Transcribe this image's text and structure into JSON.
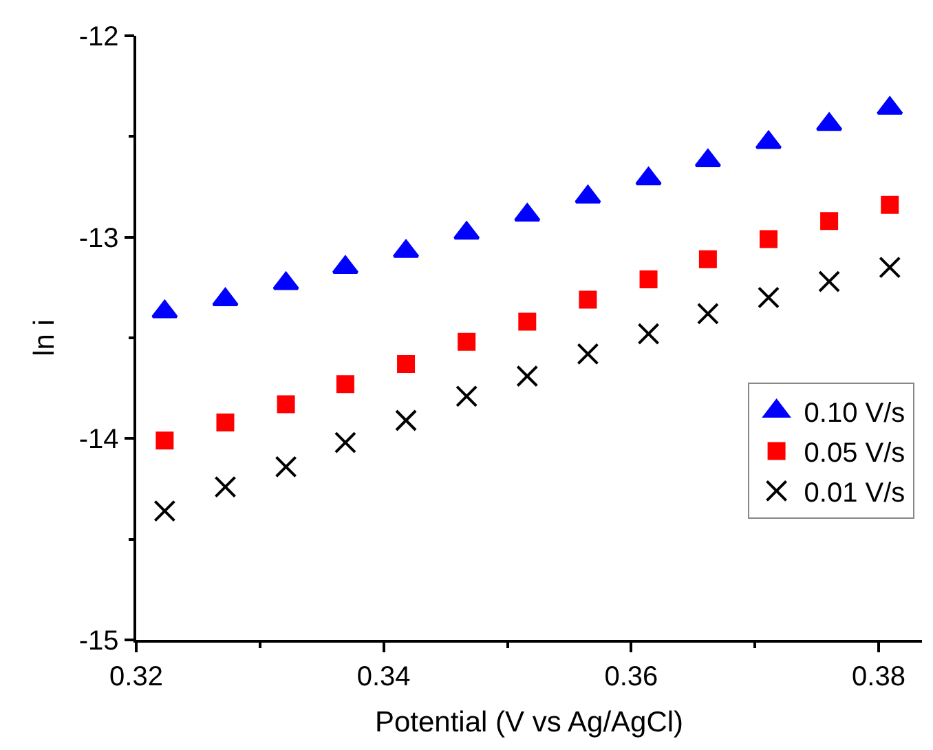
{
  "chart_data": {
    "type": "scatter",
    "xlabel": "Potential (V vs Ag/AgCl)",
    "ylabel": "ln i",
    "x": [
      0.3223,
      0.3272,
      0.3321,
      0.3369,
      0.3418,
      0.3467,
      0.3516,
      0.3565,
      0.3614,
      0.3662,
      0.3711,
      0.376,
      0.3809
    ],
    "series": [
      {
        "name": "0.10 V/s",
        "color": "#0000ff",
        "marker": "triangle",
        "values": [
          -13.37,
          -13.31,
          -13.23,
          -13.15,
          -13.07,
          -12.98,
          -12.89,
          -12.8,
          -12.71,
          -12.62,
          -12.53,
          -12.44,
          -12.36
        ]
      },
      {
        "name": "0.05 V/s",
        "color": "#ff0000",
        "marker": "square",
        "values": [
          -14.01,
          -13.92,
          -13.83,
          -13.73,
          -13.63,
          -13.52,
          -13.42,
          -13.31,
          -13.21,
          -13.11,
          -13.01,
          -12.92,
          -12.84
        ]
      },
      {
        "name": "0.01 V/s",
        "color": "#000000",
        "marker": "cross",
        "values": [
          -14.36,
          -14.24,
          -14.14,
          -14.02,
          -13.91,
          -13.79,
          -13.69,
          -13.58,
          -13.48,
          -13.38,
          -13.3,
          -13.22,
          -13.15
        ]
      }
    ],
    "xlim": [
      0.32,
      0.3835
    ],
    "xticks": [
      {
        "value": 0.32,
        "label": "0.32"
      },
      {
        "value": 0.34,
        "label": "0.34"
      },
      {
        "value": 0.36,
        "label": "0.36"
      },
      {
        "value": 0.38,
        "label": "0.38"
      }
    ],
    "ylim": [
      -15,
      -12
    ],
    "yticks": [
      -15,
      -14,
      -13,
      -12
    ],
    "legend": "bottom right"
  }
}
